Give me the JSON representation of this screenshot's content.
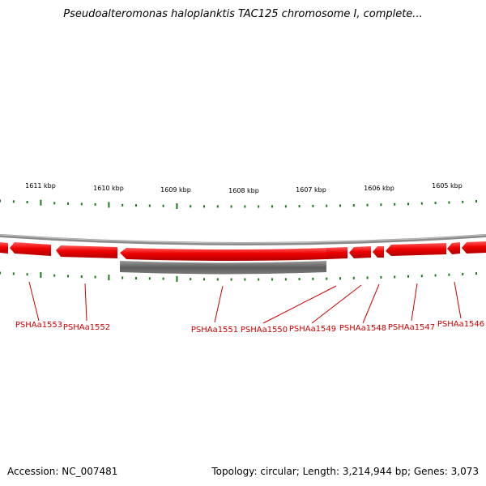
{
  "title": "Pseudoalteromonas haloplanktis TAC125 chromosome I, complete...",
  "footer": {
    "accession": "Accession: NC_007481",
    "summary": "Topology: circular; Length: 3,214,944 bp; Genes: 3,073"
  },
  "kbp_labels": [
    "1611 kbp",
    "1610 kbp",
    "1609 kbp",
    "1608 kbp",
    "1607 kbp",
    "1606 kbp",
    "1605 kbp"
  ],
  "gene_labels": [
    "PSHAa1553",
    "PSHAa1552",
    "PSHAa1551",
    "PSHAa1550",
    "PSHAa1549",
    "PSHAa1548",
    "PSHAa1547",
    "PSHAa1546"
  ],
  "colors": {
    "gene": "#ee0000",
    "gene_label": "#cc0000",
    "tick": "#1a7a1a",
    "backbone": "#888888",
    "feature_bar": "#666666"
  }
}
